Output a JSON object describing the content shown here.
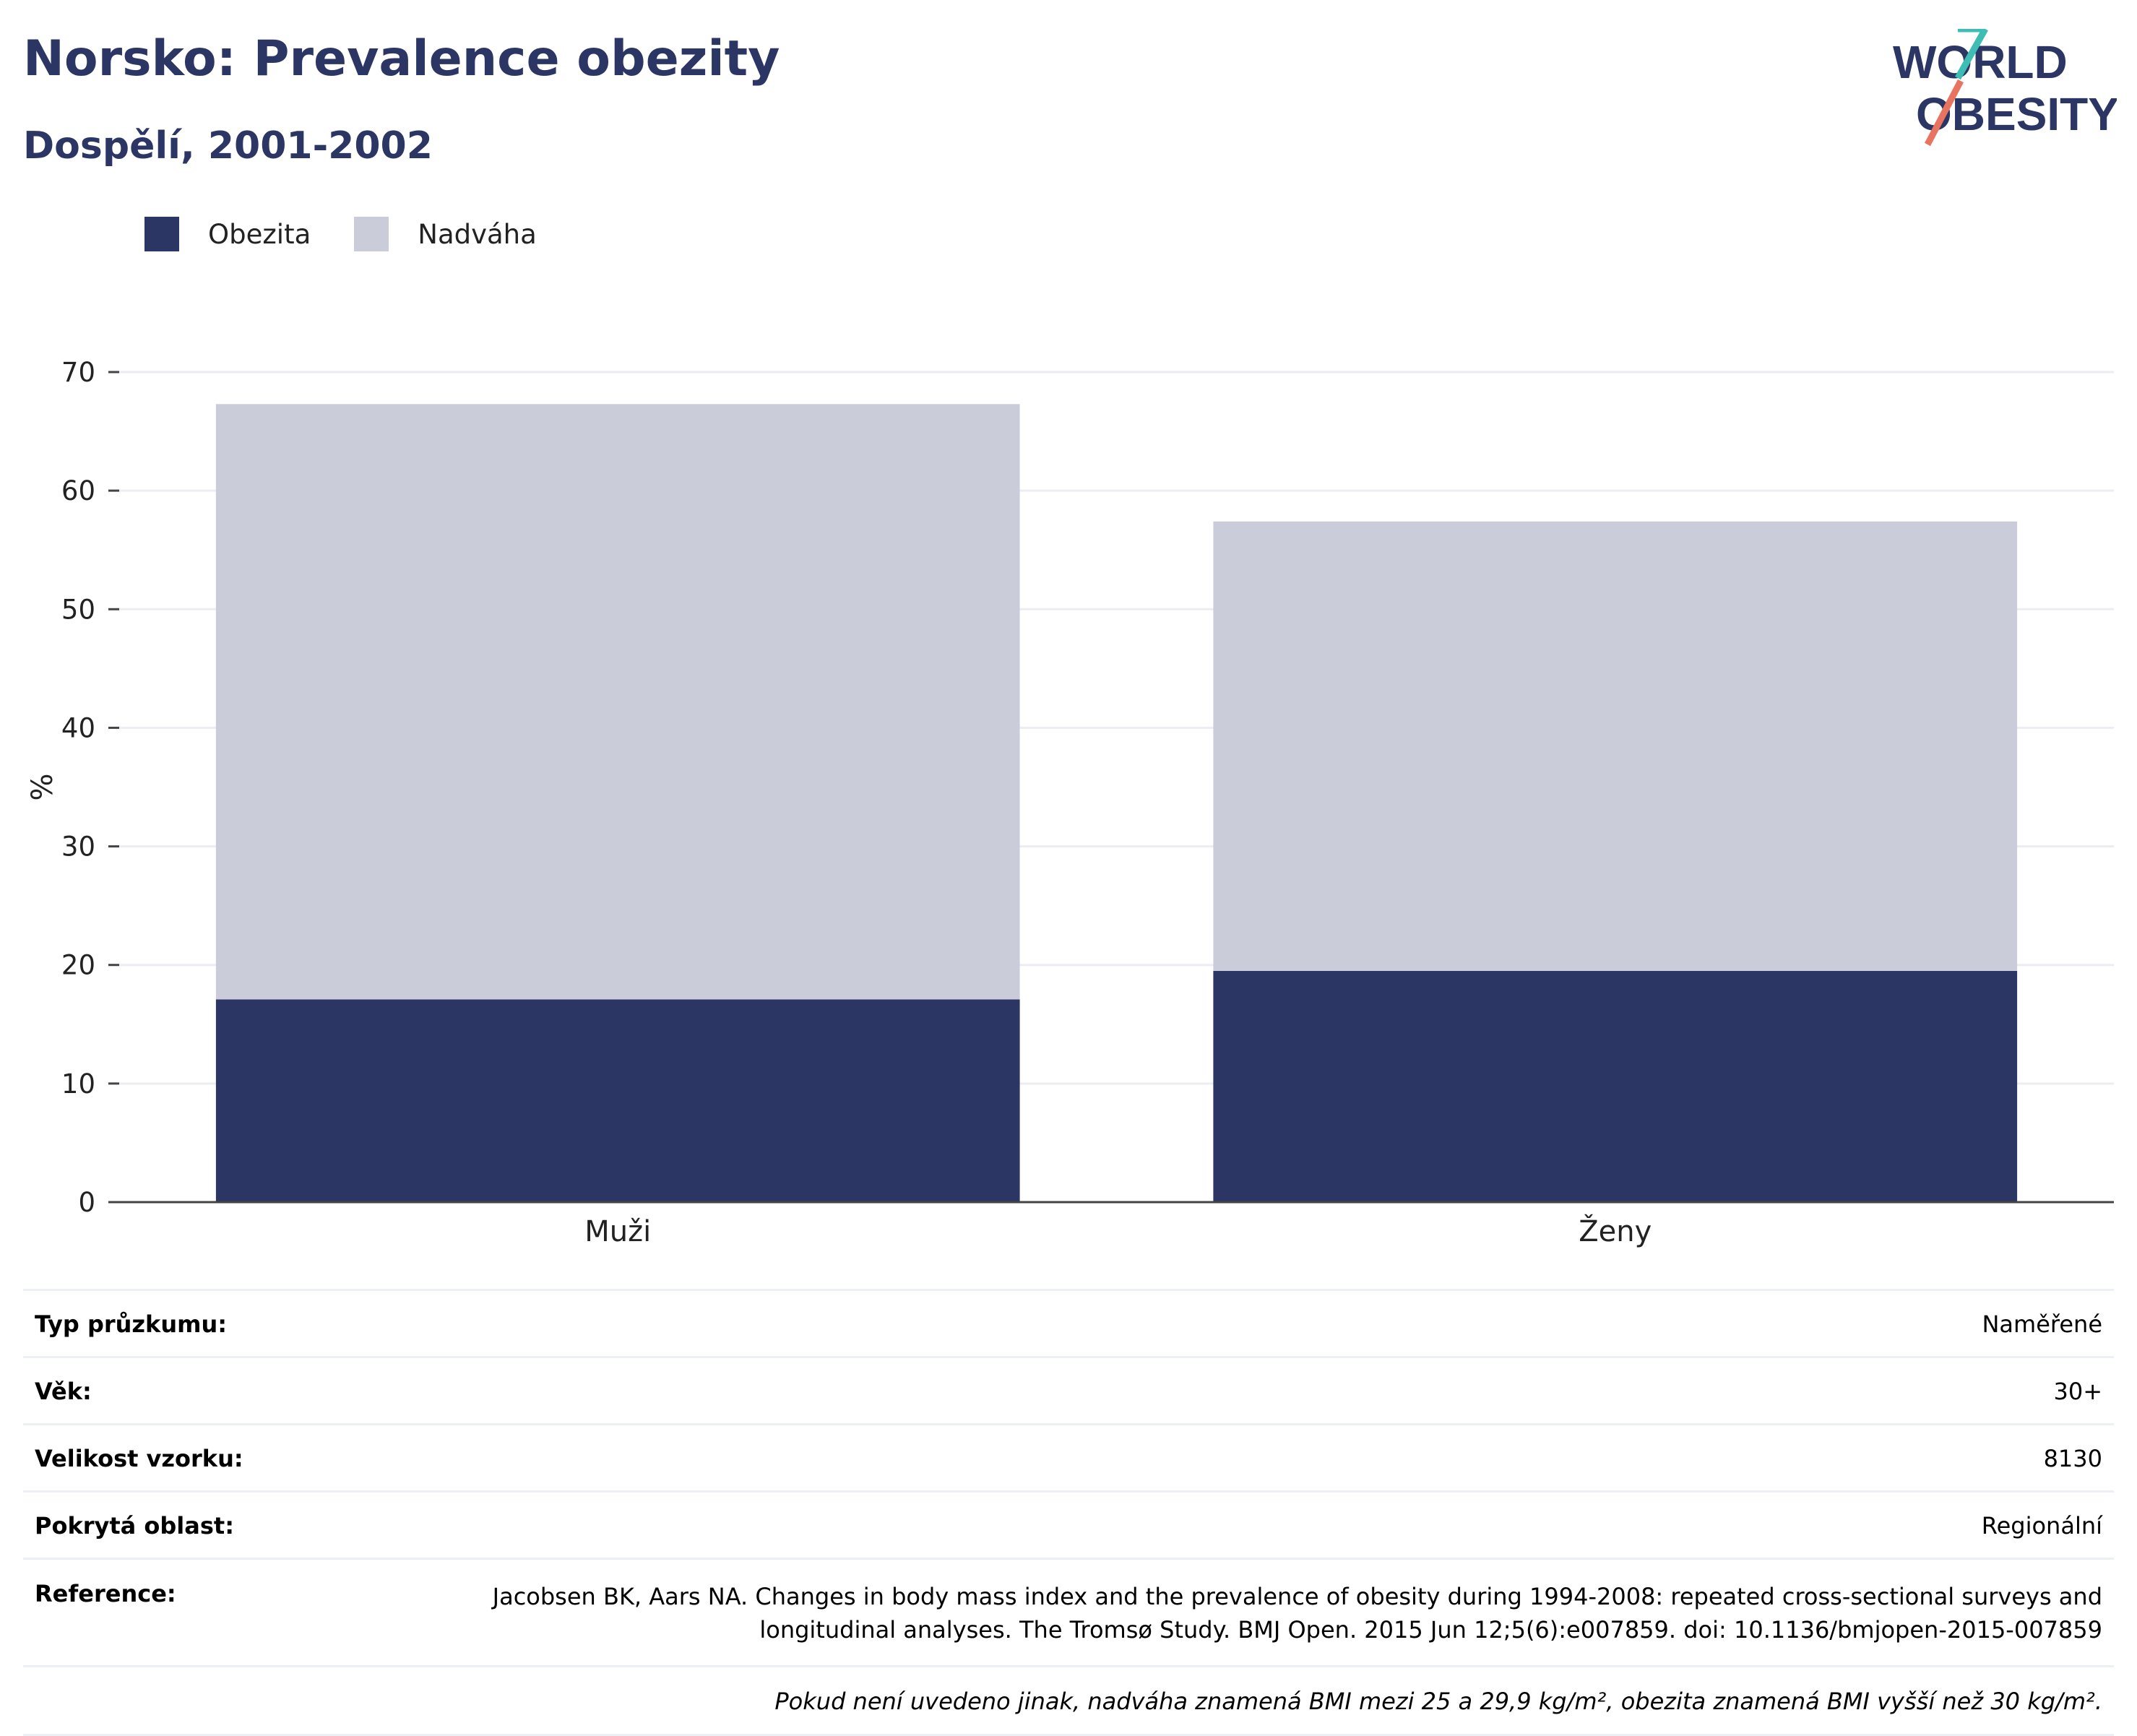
{
  "header": {
    "title": "Norsko: Prevalence obezity",
    "subtitle": "Dospělí, 2001-2002"
  },
  "logo": {
    "line1": "WORLD",
    "line2": "OBESITY"
  },
  "legend": [
    {
      "label": "Obezita",
      "color": "#2b3664"
    },
    {
      "label": "Nadváha",
      "color": "#cacdd9"
    }
  ],
  "chart_data": {
    "type": "bar",
    "stacked": true,
    "categories": [
      "Muži",
      "Ženy"
    ],
    "series": [
      {
        "name": "Obezita",
        "color": "#2b3664",
        "values": [
          17.1,
          19.5
        ]
      },
      {
        "name": "Nadváha",
        "color": "#cacdd9",
        "values": [
          50.2,
          37.9
        ]
      }
    ],
    "ylabel": "%",
    "ylim": [
      0,
      70
    ],
    "yticks": [
      0,
      10,
      20,
      30,
      40,
      50,
      60,
      70
    ],
    "grid": true,
    "legend_position": "top-left"
  },
  "meta": {
    "rows": [
      {
        "label": "Typ průzkumu:",
        "value": "Naměřené"
      },
      {
        "label": "Věk:",
        "value": "30+"
      },
      {
        "label": "Velikost vzorku:",
        "value": "8130"
      },
      {
        "label": "Pokrytá oblast:",
        "value": "Regionální"
      },
      {
        "label": "Reference:",
        "value": "Jacobsen BK, Aars NA. Changes in body mass index and the prevalence of obesity during 1994-2008: repeated cross-sectional surveys and longitudinal analyses. The Tromsø Study. BMJ Open. 2015 Jun 12;5(6):e007859. doi: 10.1136/bmjopen-2015-007859"
      }
    ],
    "note": "Pokud není uvedeno jinak, nadváha znamená BMI mezi 25 a 29,9 kg/m², obezita znamená BMI vyšší než 30 kg/m²."
  }
}
